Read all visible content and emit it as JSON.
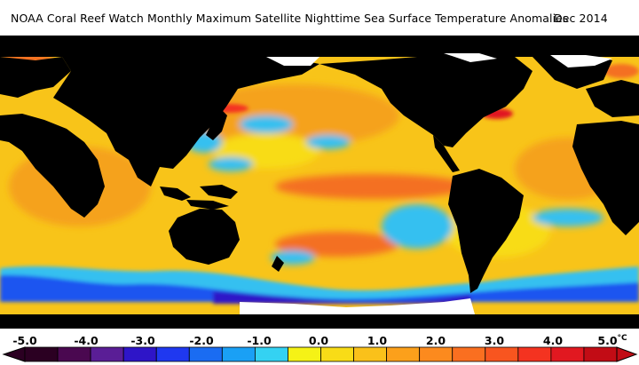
{
  "title": {
    "main": "NOAA Coral Reef Watch Monthly Maximum Satellite Nighttime Sea Surface Temperature Anomalies",
    "date": "Dec 2014"
  },
  "colorbar": {
    "ticks": [
      "-5.0",
      "-4.0",
      "-3.0",
      "-2.0",
      "-1.0",
      "0.0",
      "1.0",
      "2.0",
      "3.0",
      "4.0",
      "5.0"
    ],
    "unit": "°C",
    "colors": [
      "#2b0022",
      "#4a0850",
      "#5a1e96",
      "#2e15c8",
      "#1f38f0",
      "#1a6cf2",
      "#1aa0f5",
      "#34d2f2",
      "#f5f216",
      "#f8dc17",
      "#fac11a",
      "#fca01b",
      "#fc8a1e",
      "#fa6f20",
      "#f8551f",
      "#f43320",
      "#e11820",
      "#c20c15"
    ]
  },
  "map_colors": {
    "ocean_warm": "#f8c419",
    "ocean_orange": "#f5a21d",
    "ocean_hot": "#f47022",
    "ocean_cool": "#35c0f0",
    "ocean_cold": "#1b55f0",
    "land": "#000000",
    "ice": "#ffffff"
  }
}
